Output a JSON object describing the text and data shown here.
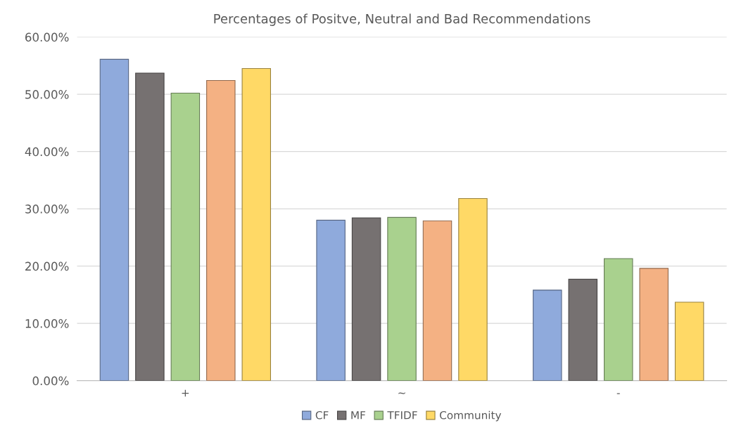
{
  "chart_data": {
    "type": "bar",
    "title": "Percentages of Positve, Neutral and Bad Recommendations",
    "categories": [
      "+",
      "~",
      "-"
    ],
    "series": [
      {
        "name": "CF",
        "color": "#8faadc",
        "values": [
          56.1,
          28.0,
          15.8
        ]
      },
      {
        "name": "MF",
        "color": "#767171",
        "values": [
          53.7,
          28.4,
          17.7
        ]
      },
      {
        "name": "TFIDF",
        "color": "#a9d18e",
        "values": [
          50.2,
          28.5,
          21.3
        ]
      },
      {
        "color": "#f4b183",
        "values": [
          52.4,
          27.9,
          19.6
        ]
      },
      {
        "name": "Community",
        "color": "#ffd966",
        "values": [
          54.5,
          31.8,
          13.7
        ]
      }
    ],
    "ylim": [
      0,
      60
    ],
    "yticks": [
      {
        "value": 0,
        "label": "0.00%"
      },
      {
        "value": 10,
        "label": "10.00%"
      },
      {
        "value": 20,
        "label": "20.00%"
      },
      {
        "value": 30,
        "label": "30.00%"
      },
      {
        "value": 40,
        "label": "40.00%"
      },
      {
        "value": 50,
        "label": "50.00%"
      },
      {
        "value": 60,
        "label": "60.00%"
      }
    ],
    "grid": "y",
    "legend": "bottom"
  }
}
